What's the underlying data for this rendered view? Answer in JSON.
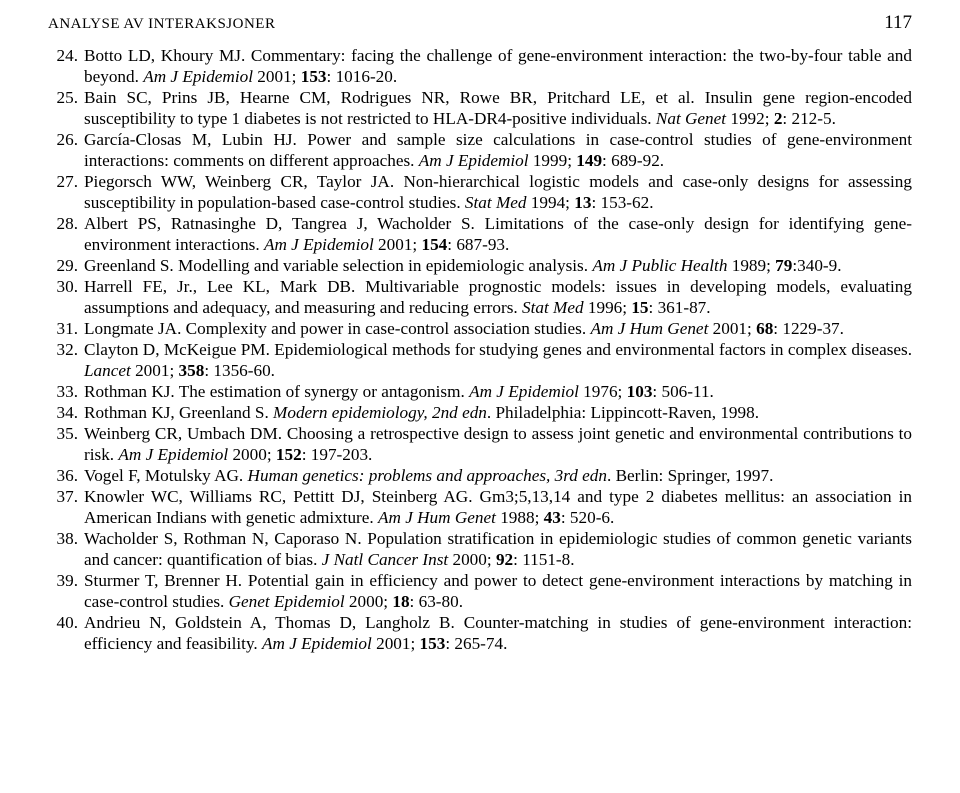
{
  "typography": {
    "font_family": "Times New Roman",
    "body_fontsize_pt": 13,
    "header_fontsize_pt": 11,
    "pagenum_fontsize_pt": 14,
    "line_height": 1.22,
    "text_color": "#000000",
    "background_color": "#ffffff"
  },
  "header": {
    "running_title": "ANALYSE AV INTERAKSJONER",
    "page_number": "117"
  },
  "references": [
    {
      "n": "24.",
      "html": "Botto LD, Khoury MJ. Commentary: facing the challenge of gene-environment interaction: the two-by-four table and beyond. <i>Am J Epidemiol</i> 2001; <b>153</b>: 1016-20."
    },
    {
      "n": "25.",
      "html": "Bain SC, Prins JB, Hearne CM, Rodrigues NR, Rowe BR, Pritchard LE, et al. Insulin gene region-encoded susceptibility to type 1 diabetes is not restricted to HLA-DR4-positive individuals. <i>Nat Genet</i> 1992; <b>2</b>: 212-5."
    },
    {
      "n": "26.",
      "html": "García-Closas M, Lubin HJ. Power and sample size calculations in case-control studies of gene-environment interactions: comments on different approaches. <i>Am J Epidemiol</i> 1999; <b>149</b>: 689-92."
    },
    {
      "n": "27.",
      "html": "Piegorsch WW, Weinberg CR, Taylor JA. Non-hierarchical logistic models and case-only designs for assessing susceptibility in population-based case-control studies. <i>Stat Med</i> 1994; <b>13</b>: 153-62."
    },
    {
      "n": "28.",
      "html": "Albert PS, Ratnasinghe D, Tangrea J, Wacholder S. Limitations of the case-only design for identifying gene-environment interactions. <i>Am J Epidemiol</i> 2001; <b>154</b>: 687-93."
    },
    {
      "n": "29.",
      "html": "Greenland S. Modelling and variable selection in epidemiologic analysis. <i>Am J Public Health</i> 1989; <b>79</b>:340-9."
    },
    {
      "n": "30.",
      "html": "Harrell FE, Jr., Lee KL, Mark DB. Multivariable prognostic models: issues in developing models, evaluating assumptions and adequacy, and measuring and reducing errors. <i>Stat Med</i> 1996; <b>15</b>: 361-87."
    },
    {
      "n": "31.",
      "html": "Longmate JA. Complexity and power in case-control association studies. <i>Am J Hum Genet</i> 2001; <b>68</b>: 1229-37."
    },
    {
      "n": "32.",
      "html": "Clayton D, McKeigue PM. Epidemiological methods for studying genes and environmental factors in complex diseases. <i>Lancet</i> 2001; <b>358</b>: 1356-60."
    },
    {
      "n": "33.",
      "html": "Rothman KJ. The estimation of synergy or antagonism. <i>Am J Epidemiol</i> 1976; <b>103</b>: 506-11."
    },
    {
      "n": "34.",
      "html": "Rothman KJ, Greenland S. <i>Modern epidemiology, 2nd edn</i>. Philadelphia: Lippincott-Raven, 1998."
    },
    {
      "n": "35.",
      "html": "Weinberg CR, Umbach DM. Choosing a retrospective design to assess joint genetic and environmental contributions to risk. <i>Am J Epidemiol</i> 2000; <b>152</b>: 197-203."
    },
    {
      "n": "36.",
      "html": "Vogel F, Motulsky AG. <i>Human genetics: problems and approaches, 3rd edn</i>. Berlin: Springer, 1997."
    },
    {
      "n": "37.",
      "html": "Knowler WC, Williams RC, Pettitt DJ, Steinberg AG. Gm3;5,13,14 and type 2 diabetes mellitus: an association in American Indians with genetic admixture. <i>Am J Hum Genet</i> 1988; <b>43</b>: 520-6."
    },
    {
      "n": "38.",
      "html": "Wacholder S, Rothman N, Caporaso N. Population stratification in epidemiologic studies of common genetic variants and cancer: quantification of bias. <i>J Natl Cancer Inst</i> 2000; <b>92</b>: 1151-8."
    },
    {
      "n": "39.",
      "html": "Sturmer T, Brenner H. Potential gain in efficiency and power to detect gene-environment interactions by matching in case-control studies. <i>Genet Epidemiol</i> 2000; <b>18</b>: 63-80."
    },
    {
      "n": "40.",
      "html": "Andrieu N, Goldstein A, Thomas D, Langholz B. Counter-matching in studies of gene-environment interaction: efficiency and feasibility. <i>Am J Epidemiol</i> 2001; <b>153</b>: 265-74."
    }
  ]
}
